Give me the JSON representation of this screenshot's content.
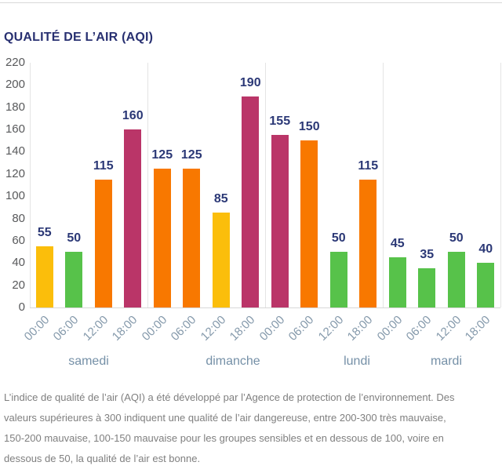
{
  "header": {
    "title": "QUALITÉ DE L’AIR (AQI)"
  },
  "chart_data": {
    "type": "bar",
    "title": "QUALITÉ DE L’AIR (AQI)",
    "x": [
      "00:00",
      "06:00",
      "12:00",
      "18:00",
      "00:00",
      "06:00",
      "12:00",
      "18:00",
      "00:00",
      "06:00",
      "12:00",
      "18:00",
      "00:00",
      "06:00",
      "12:00",
      "18:00"
    ],
    "day_groups": [
      "samedi",
      "dimanche",
      "lundi",
      "mardi"
    ],
    "series": [
      {
        "name": "AQI",
        "values": [
          55,
          50,
          115,
          160,
          125,
          125,
          85,
          190,
          155,
          150,
          50,
          115,
          45,
          35,
          50,
          40
        ]
      }
    ],
    "point_colors": [
      "#FBBE0B",
      "#57C24A",
      "#F87800",
      "#BA3568",
      "#F87800",
      "#F87800",
      "#FBBE0B",
      "#BA3568",
      "#BA3568",
      "#F87800",
      "#57C24A",
      "#F87800",
      "#57C24A",
      "#57C24A",
      "#57C24A",
      "#57C24A"
    ],
    "palette": {
      "green": "#57C24A",
      "yellow": "#FBBE0B",
      "orange": "#F87800",
      "magenta": "#BA3568"
    },
    "text_colors": {
      "title": "#283071",
      "value_label": "#2B3876",
      "ytick": "#58595B",
      "time_label": "#8398AA",
      "day_label": "#7590A7",
      "footer": "#7F7F7F"
    },
    "xlabel": "",
    "ylabel": "",
    "ylim": [
      0,
      220
    ],
    "yticks": [
      0,
      20,
      40,
      60,
      80,
      100,
      120,
      140,
      160,
      180,
      200,
      220
    ],
    "grid": "vertical day separators, light gray",
    "legend": "none"
  },
  "footer": {
    "description": "L’indice de qualité de l’air (AQI) a été développé par l’Agence de protection de l’environnement. Des\nvaleurs supérieures à 300 indiquent une qualité de l’air dangereuse, entre 200-300 très mauvaise,\n150-200 mauvaise, 100-150 mauvaise pour les groupes sensibles et en dessous de 100, voire en\ndessous de 50, la qualité de l’air est bonne."
  }
}
